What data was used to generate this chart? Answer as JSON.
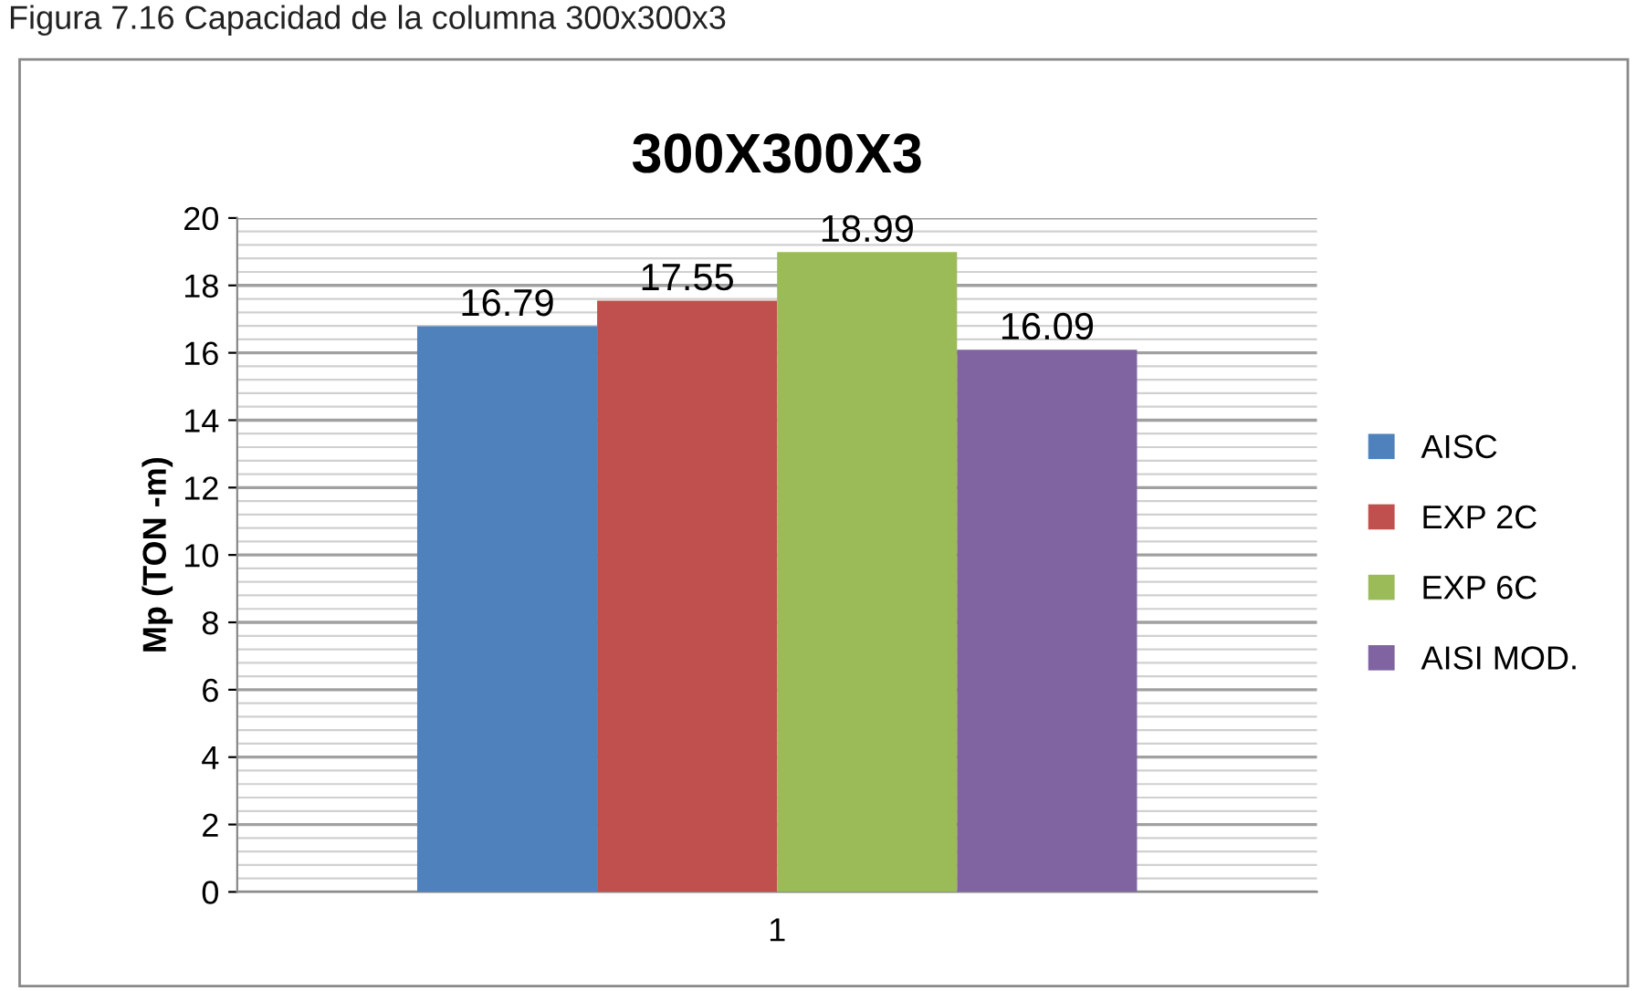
{
  "chart_data": {
    "type": "bar",
    "title": "300X300X3",
    "ylabel": "Mp (TON -m)",
    "annotations": [
      "Figura 7.16 Capacidad de la columna 300x300x3"
    ],
    "categories": [
      "1"
    ],
    "series": [
      {
        "name": "AISC",
        "color": "#4f81bd",
        "values": [
          16.79
        ]
      },
      {
        "name": "EXP 2C",
        "color": "#c0504d",
        "values": [
          17.55
        ]
      },
      {
        "name": "EXP 6C",
        "color": "#9bbb59",
        "values": [
          18.99
        ]
      },
      {
        "name": "AISI MOD.",
        "color": "#8064a2",
        "values": [
          16.09
        ]
      }
    ],
    "ylim": [
      0,
      20
    ],
    "yticks": [
      0,
      2,
      4,
      6,
      8,
      10,
      12,
      14,
      16,
      18,
      20
    ],
    "grid": "y",
    "legend": "right",
    "data_labels": true
  }
}
